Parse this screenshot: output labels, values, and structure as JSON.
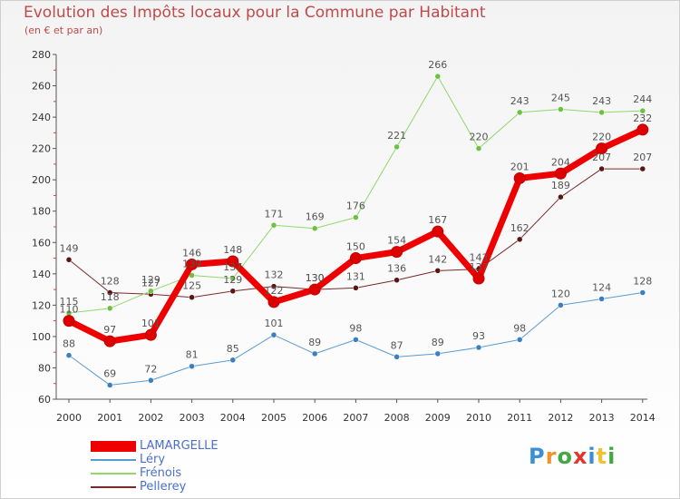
{
  "title": "Evolution des Impôts locaux pour la Commune par Habitant",
  "subtitle": "(en € et par an)",
  "brand": "Proxiti",
  "brand_colors": [
    "#3a8fd6",
    "#f0922e",
    "#43a843",
    "#e3342f",
    "#3a8fd6",
    "#f2c230",
    "#43a843"
  ],
  "chart_data": {
    "type": "line",
    "title": "Evolution des Impôts locaux pour la Commune par Habitant",
    "subtitle": "(en € et par an)",
    "xlabel": "",
    "ylabel": "",
    "ylim": [
      60,
      280
    ],
    "yticks": [
      60,
      80,
      100,
      120,
      140,
      160,
      180,
      200,
      220,
      240,
      260,
      280
    ],
    "x": [
      "2000",
      "2001",
      "2002",
      "2003",
      "2004",
      "2005",
      "2006",
      "2007",
      "2008",
      "2009",
      "2010",
      "2011",
      "2012",
      "2013",
      "2014"
    ],
    "grid": false,
    "legend_position": "bottom-left",
    "series": [
      {
        "name": "Pellerey",
        "color": "#7b2a2a",
        "marker": "#5a1515",
        "width": 1,
        "values": [
          149,
          128,
          127,
          125,
          129,
          132,
          130,
          131,
          136,
          142,
          143,
          162,
          189,
          207,
          207
        ]
      },
      {
        "name": "Léry",
        "color": "#5a9bd0",
        "marker": "#3a7fc0",
        "width": 1,
        "values": [
          88,
          69,
          72,
          81,
          85,
          101,
          89,
          98,
          87,
          89,
          93,
          98,
          120,
          124,
          128
        ]
      },
      {
        "name": "Frénois",
        "color": "#8fd86a",
        "marker": "#6cc23f",
        "width": 1,
        "values": [
          115,
          118,
          129,
          139,
          137,
          171,
          169,
          176,
          221,
          266,
          220,
          243,
          245,
          243,
          244
        ]
      },
      {
        "name": "LAMARGELLE",
        "color": "#ee0000",
        "marker": "#dd0000",
        "width": 7,
        "values": [
          110,
          97,
          101,
          146,
          148,
          122,
          130,
          150,
          154,
          167,
          137,
          201,
          204,
          220,
          232
        ]
      }
    ],
    "legend": [
      "LAMARGELLE",
      "Léry",
      "Frénois",
      "Pellerey"
    ]
  }
}
